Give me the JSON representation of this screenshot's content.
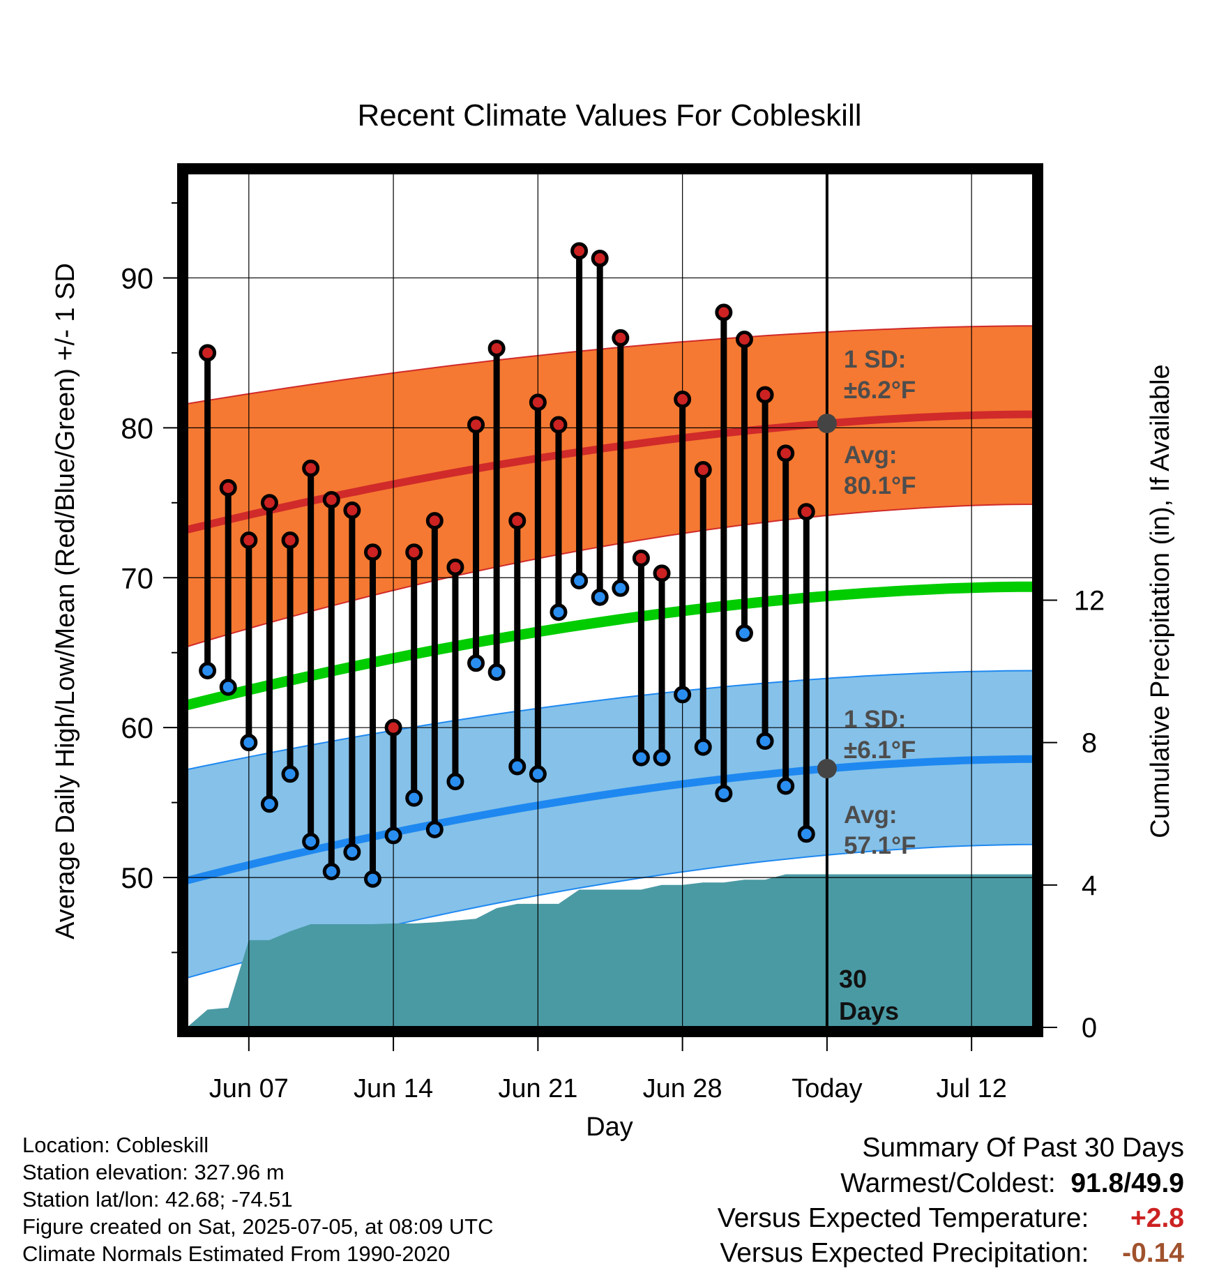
{
  "chart_data": {
    "type": "line",
    "title": "Recent Climate Values For Cobleskill",
    "xlabel": "Day",
    "ylabel": "Average Daily High/Low/Mean (Red/Blue/Green) +/- 1 SD",
    "ylabel_right": "Cumulative Precipitation (in), If Available",
    "ylim": [
      40,
      97
    ],
    "ylim_right": [
      0,
      24
    ],
    "xlim": [
      "Jun 04",
      "Jul 15"
    ],
    "y_ticks": [
      50,
      60,
      70,
      80,
      90
    ],
    "y_ticks_right": [
      0,
      4,
      8,
      12
    ],
    "x_ticks": [
      {
        "date": "Jun 07",
        "label": "Jun 07"
      },
      {
        "date": "Jun 14",
        "label": "Jun 14"
      },
      {
        "date": "Jun 21",
        "label": "Jun 21"
      },
      {
        "date": "Jun 28",
        "label": "Jun 28"
      },
      {
        "date": "Jul 05",
        "label": "Today"
      },
      {
        "date": "Jul 12",
        "label": "Jul 12"
      }
    ],
    "grid": true,
    "today": "Jul 05",
    "today_label": "30 Days",
    "observed": {
      "dates": [
        "Jun 05",
        "Jun 06",
        "Jun 07",
        "Jun 08",
        "Jun 09",
        "Jun 10",
        "Jun 11",
        "Jun 12",
        "Jun 13",
        "Jun 14",
        "Jun 15",
        "Jun 16",
        "Jun 17",
        "Jun 18",
        "Jun 19",
        "Jun 20",
        "Jun 21",
        "Jun 22",
        "Jun 23",
        "Jun 24",
        "Jun 25",
        "Jun 26",
        "Jun 27",
        "Jun 28",
        "Jun 29",
        "Jun 30",
        "Jul 01",
        "Jul 02",
        "Jul 03",
        "Jul 04"
      ],
      "high": [
        85.0,
        76.0,
        72.5,
        75.0,
        72.5,
        77.3,
        75.2,
        74.5,
        71.7,
        60.0,
        71.7,
        73.8,
        70.7,
        80.2,
        85.3,
        73.8,
        81.7,
        80.2,
        91.8,
        91.3,
        86.0,
        71.3,
        70.3,
        81.9,
        77.2,
        87.7,
        85.9,
        82.2,
        78.3,
        74.4
      ],
      "low": [
        63.8,
        62.7,
        59.0,
        54.9,
        56.9,
        52.4,
        50.4,
        51.7,
        49.9,
        52.8,
        55.3,
        53.2,
        56.4,
        64.3,
        63.7,
        57.4,
        56.9,
        67.7,
        69.8,
        68.7,
        69.3,
        58.0,
        58.0,
        62.2,
        58.7,
        55.6,
        66.3,
        59.1,
        56.1,
        52.9
      ]
    },
    "normals": {
      "dates": [
        "Jun 04",
        "Jul 15"
      ],
      "high_mean": [
        73.2,
        80.9
      ],
      "low_mean": [
        49.8,
        57.9
      ],
      "mean": [
        61.5,
        69.4
      ],
      "high_upper": [
        81.6,
        86.8
      ],
      "high_lower": [
        65.4,
        74.9
      ],
      "low_upper": [
        57.2,
        63.8
      ],
      "low_lower": [
        43.3,
        52.2
      ]
    },
    "precipitation": {
      "dates": [
        "Jun 04",
        "Jun 05",
        "Jun 06",
        "Jun 07",
        "Jun 08",
        "Jun 09",
        "Jun 10",
        "Jun 11",
        "Jun 12",
        "Jun 13",
        "Jun 14",
        "Jun 15",
        "Jun 16",
        "Jun 17",
        "Jun 18",
        "Jun 19",
        "Jun 20",
        "Jun 21",
        "Jun 22",
        "Jun 23",
        "Jun 24",
        "Jun 25",
        "Jun 26",
        "Jun 27",
        "Jun 28",
        "Jun 29",
        "Jun 30",
        "Jul 01",
        "Jul 02",
        "Jul 03",
        "Jul 04",
        "Jul 05",
        "Jul 15"
      ],
      "cumulative": [
        0.0,
        0.5,
        0.55,
        2.45,
        2.45,
        2.7,
        2.9,
        2.9,
        2.9,
        2.9,
        2.92,
        2.92,
        2.95,
        3.0,
        3.05,
        3.35,
        3.47,
        3.47,
        3.47,
        3.87,
        3.87,
        3.87,
        3.87,
        4.0,
        4.0,
        4.07,
        4.07,
        4.15,
        4.15,
        4.3,
        4.3,
        4.3,
        4.3
      ]
    },
    "annotations": {
      "high_sd_label": "1 SD:",
      "high_sd_value": "±6.2°F",
      "high_avg_label": "Avg:",
      "high_avg_value": "80.1°F",
      "low_sd_label": "1 SD:",
      "low_sd_value": "±6.1°F",
      "low_avg_label": "Avg:",
      "low_avg_value": "57.1°F"
    },
    "colors": {
      "high_band": "#f57932",
      "high_line": "#d02a2a",
      "low_band": "#85c1e9",
      "low_line": "#1e88f0",
      "mean_line": "#00cc00",
      "precip": "#4a9aa4",
      "high_marker": "#cc2222",
      "low_marker": "#2a8ef0",
      "annotation_text": "#4d4d4d"
    }
  },
  "footer": {
    "location": "Location: Cobleskill",
    "elevation": "Station elevation: 327.96 m",
    "latlon": "Station lat/lon: 42.68; -74.51",
    "created": "Figure created on Sat, 2025-07-05, at 08:09 UTC",
    "normals": "Climate Normals Estimated From 1990-2020"
  },
  "summary": {
    "title": "Summary Of Past 30 Days",
    "warmest_coldest_label": "Warmest/Coldest:",
    "warmest_coldest_value": "91.8/49.9",
    "temp_label": "Versus Expected Temperature:",
    "temp_value": "+2.8",
    "temp_color": "#cc2222",
    "precip_label": "Versus Expected Precipitation:",
    "precip_value": "-0.14",
    "precip_color": "#a0522d"
  }
}
